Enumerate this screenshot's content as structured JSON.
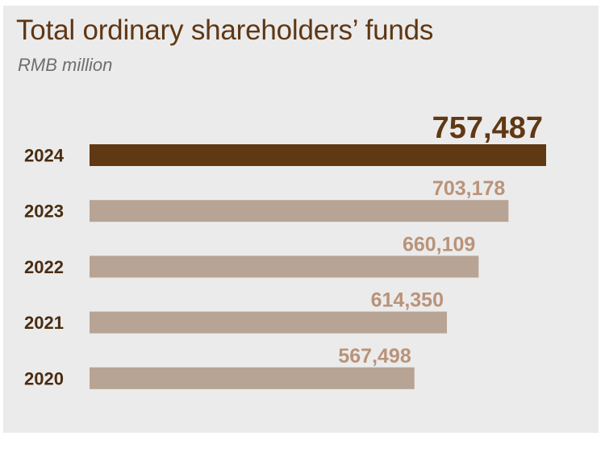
{
  "title": "Total ordinary shareholders’ funds",
  "subtitle": "RMB million",
  "colors": {
    "panel_bg": "#ebebeb",
    "title": "#5f3714",
    "highlight_bar": "#603813",
    "bar": "#b8a494",
    "highlight_label": "#603813",
    "label": "#b99379",
    "category_label": "#4a2c10"
  },
  "chart_data": {
    "type": "bar",
    "orientation": "horizontal",
    "title": "Total ordinary shareholders’ funds",
    "unit": "RMB million",
    "categories": [
      "2024",
      "2023",
      "2022",
      "2021",
      "2020"
    ],
    "values": [
      757487,
      703178,
      660109,
      614350,
      567498
    ],
    "value_labels": [
      "757,487",
      "703,178",
      "660,109",
      "614,350",
      "567,498"
    ],
    "highlight": "2024",
    "grid": false
  }
}
